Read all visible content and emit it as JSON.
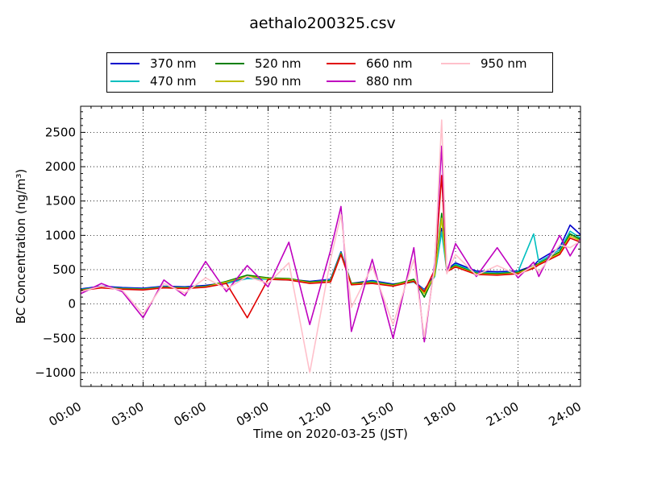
{
  "chart_data": {
    "type": "line",
    "title": "aethalo200325.csv",
    "xlabel": "Time on 2020-03-25 (JST)",
    "ylabel": "BC Concentration (ng/m³)",
    "xlim": [
      "00:00",
      "24:00"
    ],
    "ylim": [
      -1200,
      2880
    ],
    "grid": true,
    "legend_position": "top-center",
    "x_ticks": [
      "00:00",
      "03:00",
      "06:00",
      "09:00",
      "12:00",
      "15:00",
      "18:00",
      "21:00",
      "24:00"
    ],
    "y_ticks": [
      -1000,
      -500,
      0,
      500,
      1000,
      1500,
      2000,
      2500
    ],
    "x": [
      "00:00",
      "01:00",
      "02:00",
      "03:00",
      "04:00",
      "05:00",
      "06:00",
      "07:00",
      "08:00",
      "09:00",
      "10:00",
      "11:00",
      "12:00",
      "12:30",
      "13:00",
      "14:00",
      "15:00",
      "16:00",
      "16:30",
      "17:00",
      "17:20",
      "17:35",
      "18:00",
      "19:00",
      "20:00",
      "21:00",
      "21:45",
      "22:00",
      "23:00",
      "23:30",
      "24:00"
    ],
    "series": [
      {
        "name": "370 nm",
        "color": "#0000cc",
        "values": [
          220,
          260,
          240,
          230,
          260,
          250,
          270,
          310,
          380,
          370,
          360,
          330,
          360,
          760,
          300,
          340,
          290,
          330,
          210,
          420,
          1100,
          500,
          600,
          480,
          470,
          480,
          560,
          640,
          820,
          1150,
          1010
        ]
      },
      {
        "name": "470 nm",
        "color": "#00bfbf",
        "values": [
          210,
          250,
          230,
          220,
          250,
          240,
          260,
          300,
          370,
          360,
          350,
          320,
          350,
          750,
          290,
          330,
          280,
          320,
          200,
          400,
          1050,
          480,
          580,
          460,
          450,
          470,
          1020,
          610,
          790,
          1060,
          960
        ]
      },
      {
        "name": "520 nm",
        "color": "#007f00",
        "values": [
          205,
          245,
          225,
          215,
          245,
          235,
          255,
          330,
          420,
          380,
          370,
          320,
          340,
          740,
          300,
          320,
          280,
          360,
          100,
          430,
          1320,
          500,
          560,
          450,
          440,
          460,
          560,
          590,
          760,
          1020,
          940
        ]
      },
      {
        "name": "590 nm",
        "color": "#bfbf00",
        "values": [
          200,
          240,
          220,
          210,
          240,
          230,
          250,
          320,
          400,
          370,
          360,
          310,
          330,
          730,
          290,
          310,
          270,
          340,
          150,
          420,
          1250,
          480,
          550,
          440,
          430,
          450,
          540,
          580,
          740,
          990,
          920
        ]
      },
      {
        "name": "660 nm",
        "color": "#e00000",
        "values": [
          195,
          235,
          215,
          205,
          235,
          225,
          245,
          300,
          -200,
          360,
          350,
          300,
          320,
          720,
          280,
          300,
          260,
          330,
          180,
          500,
          1870,
          470,
          540,
          430,
          420,
          440,
          520,
          570,
          720,
          960,
          900
        ]
      },
      {
        "name": "880 nm",
        "color": "#bf00bf",
        "values": [
          150,
          300,
          180,
          -200,
          350,
          120,
          620,
          180,
          560,
          250,
          900,
          -300,
          780,
          1420,
          -400,
          650,
          -500,
          820,
          -550,
          600,
          2300,
          460,
          880,
          400,
          820,
          380,
          610,
          400,
          1000,
          700,
          950
        ]
      },
      {
        "name": "950 nm",
        "color": "#ffc0cb",
        "values": [
          180,
          260,
          200,
          -150,
          300,
          160,
          380,
          220,
          400,
          300,
          600,
          -1000,
          650,
          1300,
          -50,
          550,
          -300,
          650,
          -480,
          550,
          2680,
          440,
          720,
          420,
          560,
          420,
          560,
          460,
          860,
          820,
          920
        ]
      }
    ]
  }
}
